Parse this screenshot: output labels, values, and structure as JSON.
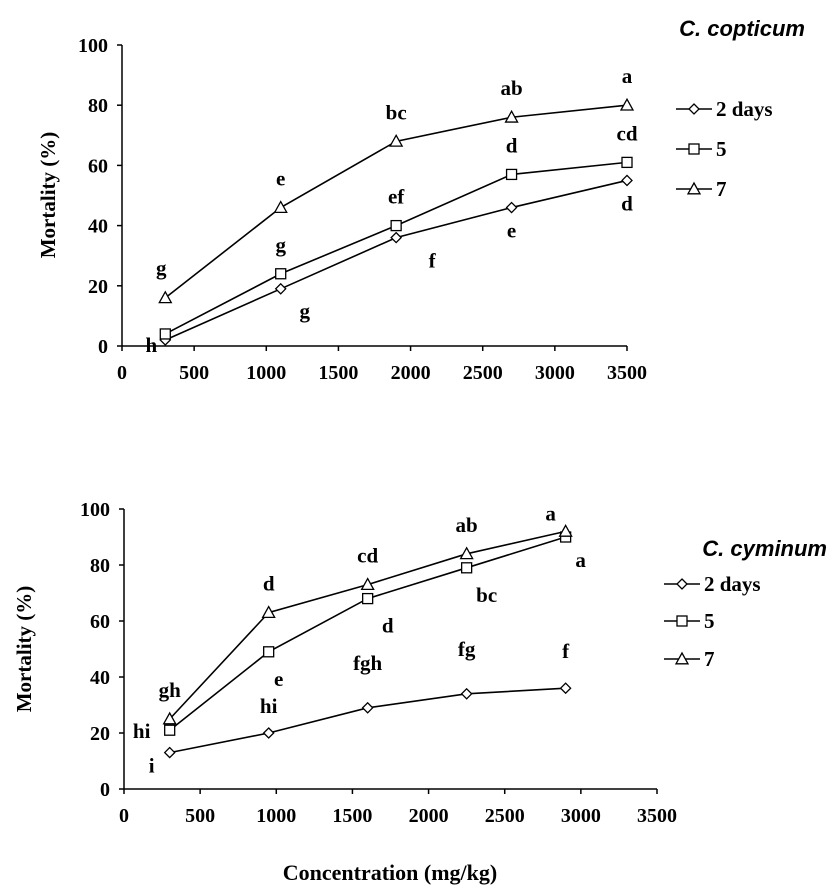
{
  "xlabel": "Concentration (mg/kg)",
  "chart_data": [
    {
      "type": "line",
      "title": "C. copticum",
      "ylabel": "Mortality (%)",
      "xlabel": "",
      "xlim": [
        0,
        3500
      ],
      "ylim": [
        0,
        100
      ],
      "xticks": [
        "0",
        "500",
        "1000",
        "1500",
        "2000",
        "2500",
        "3000",
        "3500"
      ],
      "yticks": [
        "0",
        "20",
        "40",
        "60",
        "80",
        "100"
      ],
      "legend_position": "right",
      "series": [
        {
          "name": "2 days",
          "marker": "diamond",
          "x": [
            300,
            1100,
            1900,
            2700,
            3500
          ],
          "y": [
            2,
            19,
            36,
            46,
            55
          ],
          "letters": [
            "h",
            "g",
            "f",
            "e",
            "d"
          ]
        },
        {
          "name": "5",
          "marker": "square",
          "x": [
            300,
            1100,
            1900,
            2700,
            3500
          ],
          "y": [
            4,
            24,
            40,
            57,
            61
          ],
          "letters": [
            "",
            "g",
            "ef",
            "d",
            "cd"
          ]
        },
        {
          "name": "7",
          "marker": "triangle",
          "x": [
            300,
            1100,
            1900,
            2700,
            3500
          ],
          "y": [
            16,
            46,
            68,
            76,
            80
          ],
          "letters": [
            "g",
            "e",
            "bc",
            "ab",
            "a"
          ]
        }
      ]
    },
    {
      "type": "line",
      "title": "C. cyminum",
      "ylabel": "Mortality (%)",
      "xlabel": "Concentration (mg/kg)",
      "xlim": [
        0,
        3500
      ],
      "ylim": [
        0,
        100
      ],
      "xticks": [
        "0",
        "500",
        "1000",
        "1500",
        "2000",
        "2500",
        "3000",
        "3500"
      ],
      "yticks": [
        "0",
        "20",
        "40",
        "60",
        "80",
        "100"
      ],
      "legend_position": "right",
      "series": [
        {
          "name": "2 days",
          "marker": "diamond",
          "x": [
            300,
            950,
            1600,
            2250,
            2900
          ],
          "y": [
            13,
            20,
            29,
            34,
            36
          ],
          "letters": [
            "i",
            "hi",
            "fgh",
            "fg",
            "f"
          ]
        },
        {
          "name": "5",
          "marker": "square",
          "x": [
            300,
            950,
            1600,
            2250,
            2900
          ],
          "y": [
            21,
            49,
            68,
            79,
            90
          ],
          "letters": [
            "hi",
            "e",
            "d",
            "bc",
            "a"
          ]
        },
        {
          "name": "7",
          "marker": "triangle",
          "x": [
            300,
            950,
            1600,
            2250,
            2900
          ],
          "y": [
            25,
            63,
            73,
            84,
            92
          ],
          "letters": [
            "gh",
            "d",
            "cd",
            "ab",
            "a"
          ]
        }
      ]
    }
  ]
}
